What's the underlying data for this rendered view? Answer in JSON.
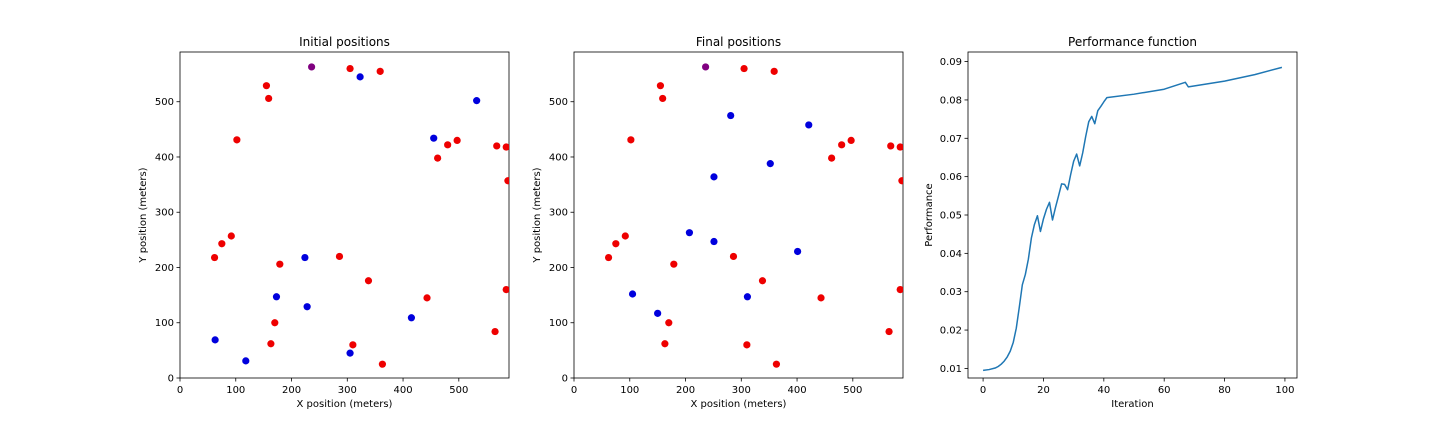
{
  "colors": {
    "red": "#ee0000",
    "blue": "#0000dd",
    "purple": "#800080",
    "line": "#1f77b4"
  },
  "chart_data": [
    {
      "type": "scatter",
      "title": "Initial positions",
      "xlabel": "X position (meters)",
      "ylabel": "Y position (meters)",
      "xlim": [
        0,
        590
      ],
      "ylim": [
        0,
        590
      ],
      "xticks": [
        0,
        100,
        200,
        300,
        400,
        500
      ],
      "yticks": [
        0,
        100,
        200,
        300,
        400,
        500
      ],
      "grid": false,
      "points": [
        {
          "x": 236,
          "y": 563,
          "c": "purple"
        },
        {
          "x": 155,
          "y": 529,
          "c": "red"
        },
        {
          "x": 159,
          "y": 506,
          "c": "red"
        },
        {
          "x": 305,
          "y": 560,
          "c": "red"
        },
        {
          "x": 359,
          "y": 555,
          "c": "red"
        },
        {
          "x": 102,
          "y": 431,
          "c": "red"
        },
        {
          "x": 462,
          "y": 398,
          "c": "red"
        },
        {
          "x": 480,
          "y": 422,
          "c": "red"
        },
        {
          "x": 497,
          "y": 430,
          "c": "red"
        },
        {
          "x": 568,
          "y": 420,
          "c": "red"
        },
        {
          "x": 585,
          "y": 418,
          "c": "red"
        },
        {
          "x": 588,
          "y": 357,
          "c": "red"
        },
        {
          "x": 92,
          "y": 257,
          "c": "red"
        },
        {
          "x": 75,
          "y": 243,
          "c": "red"
        },
        {
          "x": 62,
          "y": 218,
          "c": "red"
        },
        {
          "x": 179,
          "y": 206,
          "c": "red"
        },
        {
          "x": 286,
          "y": 220,
          "c": "red"
        },
        {
          "x": 338,
          "y": 176,
          "c": "red"
        },
        {
          "x": 443,
          "y": 145,
          "c": "red"
        },
        {
          "x": 585,
          "y": 160,
          "c": "red"
        },
        {
          "x": 170,
          "y": 100,
          "c": "red"
        },
        {
          "x": 163,
          "y": 62,
          "c": "red"
        },
        {
          "x": 310,
          "y": 60,
          "c": "red"
        },
        {
          "x": 363,
          "y": 25,
          "c": "red"
        },
        {
          "x": 565,
          "y": 84,
          "c": "red"
        },
        {
          "x": 323,
          "y": 545,
          "c": "blue"
        },
        {
          "x": 532,
          "y": 502,
          "c": "blue"
        },
        {
          "x": 455,
          "y": 434,
          "c": "blue"
        },
        {
          "x": 224,
          "y": 218,
          "c": "blue"
        },
        {
          "x": 173,
          "y": 147,
          "c": "blue"
        },
        {
          "x": 228,
          "y": 129,
          "c": "blue"
        },
        {
          "x": 415,
          "y": 109,
          "c": "blue"
        },
        {
          "x": 63,
          "y": 69,
          "c": "blue"
        },
        {
          "x": 118,
          "y": 31,
          "c": "blue"
        },
        {
          "x": 305,
          "y": 45,
          "c": "blue"
        }
      ]
    },
    {
      "type": "scatter",
      "title": "Final positions",
      "xlabel": "X position (meters)",
      "ylabel": "Y position (meters)",
      "xlim": [
        0,
        590
      ],
      "ylim": [
        0,
        590
      ],
      "xticks": [
        0,
        100,
        200,
        300,
        400,
        500
      ],
      "yticks": [
        0,
        100,
        200,
        300,
        400,
        500
      ],
      "grid": false,
      "points": [
        {
          "x": 236,
          "y": 563,
          "c": "purple"
        },
        {
          "x": 155,
          "y": 529,
          "c": "red"
        },
        {
          "x": 159,
          "y": 506,
          "c": "red"
        },
        {
          "x": 305,
          "y": 560,
          "c": "red"
        },
        {
          "x": 359,
          "y": 555,
          "c": "red"
        },
        {
          "x": 102,
          "y": 431,
          "c": "red"
        },
        {
          "x": 462,
          "y": 398,
          "c": "red"
        },
        {
          "x": 480,
          "y": 422,
          "c": "red"
        },
        {
          "x": 497,
          "y": 430,
          "c": "red"
        },
        {
          "x": 568,
          "y": 420,
          "c": "red"
        },
        {
          "x": 585,
          "y": 418,
          "c": "red"
        },
        {
          "x": 588,
          "y": 357,
          "c": "red"
        },
        {
          "x": 92,
          "y": 257,
          "c": "red"
        },
        {
          "x": 75,
          "y": 243,
          "c": "red"
        },
        {
          "x": 62,
          "y": 218,
          "c": "red"
        },
        {
          "x": 179,
          "y": 206,
          "c": "red"
        },
        {
          "x": 286,
          "y": 220,
          "c": "red"
        },
        {
          "x": 338,
          "y": 176,
          "c": "red"
        },
        {
          "x": 443,
          "y": 145,
          "c": "red"
        },
        {
          "x": 585,
          "y": 160,
          "c": "red"
        },
        {
          "x": 170,
          "y": 100,
          "c": "red"
        },
        {
          "x": 163,
          "y": 62,
          "c": "red"
        },
        {
          "x": 310,
          "y": 60,
          "c": "red"
        },
        {
          "x": 363,
          "y": 25,
          "c": "red"
        },
        {
          "x": 565,
          "y": 84,
          "c": "red"
        },
        {
          "x": 281,
          "y": 475,
          "c": "blue"
        },
        {
          "x": 421,
          "y": 458,
          "c": "blue"
        },
        {
          "x": 352,
          "y": 388,
          "c": "blue"
        },
        {
          "x": 251,
          "y": 364,
          "c": "blue"
        },
        {
          "x": 207,
          "y": 263,
          "c": "blue"
        },
        {
          "x": 251,
          "y": 247,
          "c": "blue"
        },
        {
          "x": 401,
          "y": 229,
          "c": "blue"
        },
        {
          "x": 105,
          "y": 152,
          "c": "blue"
        },
        {
          "x": 311,
          "y": 147,
          "c": "blue"
        },
        {
          "x": 150,
          "y": 117,
          "c": "blue"
        }
      ]
    },
    {
      "type": "line",
      "title": "Performance function",
      "xlabel": "Iteration",
      "ylabel": "Performance",
      "xlim": [
        -5,
        104
      ],
      "ylim": [
        0.0075,
        0.0925
      ],
      "xticks": [
        0,
        20,
        40,
        60,
        80,
        100
      ],
      "yticks": [
        0.01,
        0.02,
        0.03,
        0.04,
        0.05,
        0.06,
        0.07,
        0.08,
        0.09
      ],
      "ytick_labels": [
        "0.01",
        "0.02",
        "0.03",
        "0.04",
        "0.05",
        "0.06",
        "0.07",
        "0.08",
        "0.09"
      ],
      "grid": false,
      "series": [
        {
          "x": [
            0,
            2,
            4,
            5,
            6,
            7,
            8,
            9,
            10,
            11,
            12,
            13,
            14,
            15,
            16,
            17,
            18,
            19,
            20,
            21,
            22,
            23,
            24,
            25,
            26,
            27,
            28,
            29,
            30,
            31,
            32,
            33,
            34,
            35,
            36,
            37,
            38,
            39,
            40,
            41,
            50,
            60,
            67,
            68,
            80,
            90,
            99
          ],
          "y": [
            0.0095,
            0.0097,
            0.0101,
            0.0105,
            0.0111,
            0.0119,
            0.013,
            0.0145,
            0.0168,
            0.0205,
            0.026,
            0.0318,
            0.0345,
            0.0385,
            0.044,
            0.0475,
            0.0498,
            0.0457,
            0.049,
            0.0515,
            0.0533,
            0.0487,
            0.052,
            0.055,
            0.0581,
            0.058,
            0.0566,
            0.0605,
            0.064,
            0.0659,
            0.0628,
            0.0662,
            0.0705,
            0.0743,
            0.0757,
            0.0738,
            0.0772,
            0.0783,
            0.0795,
            0.0806,
            0.0815,
            0.0828,
            0.0846,
            0.0834,
            0.0849,
            0.0866,
            0.0885
          ]
        }
      ]
    }
  ]
}
